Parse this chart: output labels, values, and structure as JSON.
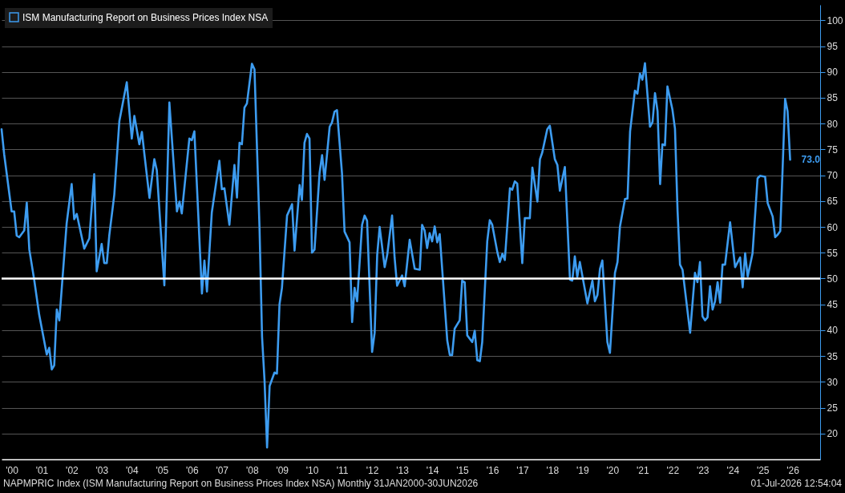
{
  "chart_data": {
    "type": "line",
    "series": [
      {
        "name": "ISM Manufacturing Report on Business Prices Index NSA",
        "color": "#3d9cf0",
        "x": [
          "2000-03",
          "2000-04",
          "2000-07",
          "2000-08",
          "2000-09",
          "2000-10",
          "2000-12",
          "2001-01",
          "2001-02",
          "2001-04",
          "2001-06",
          "2001-09",
          "2001-10",
          "2001-11",
          "2001-12",
          "2002-01",
          "2002-02",
          "2002-05",
          "2002-07",
          "2002-08",
          "2002-09",
          "2002-12",
          "2003-02",
          "2003-04",
          "2003-05",
          "2003-07",
          "2003-08",
          "2003-09",
          "2003-10",
          "2003-12",
          "2004-02",
          "2004-05",
          "2004-07",
          "2004-08",
          "2004-10",
          "2004-11",
          "2004-12",
          "2005-02",
          "2005-04",
          "2005-05",
          "2005-08",
          "2005-10",
          "2006-01",
          "2006-02",
          "2006-03",
          "2006-06",
          "2006-07",
          "2006-08",
          "2006-11",
          "2006-12",
          "2007-01",
          "2007-03",
          "2007-06",
          "2007-07",
          "2007-08",
          "2007-10",
          "2007-12",
          "2008-01",
          "2008-02",
          "2008-03",
          "2008-04",
          "2008-05",
          "2008-07",
          "2008-08",
          "2008-10",
          "2008-11",
          "2008-12",
          "2009-01",
          "2009-02",
          "2009-04",
          "2009-05",
          "2009-06",
          "2009-07",
          "2009-09",
          "2009-11",
          "2009-12",
          "2010-02",
          "2010-03",
          "2010-04",
          "2010-05",
          "2010-06",
          "2010-07",
          "2010-08",
          "2010-10",
          "2010-11",
          "2010-12",
          "2011-02",
          "2011-03",
          "2011-04",
          "2011-05",
          "2011-07",
          "2011-08",
          "2011-10",
          "2011-11",
          "2011-12",
          "2012-01",
          "2012-03",
          "2012-04",
          "2012-05",
          "2012-07",
          "2012-08",
          "2012-09",
          "2012-10",
          "2012-12",
          "2013-01",
          "2013-03",
          "2013-04",
          "2013-05",
          "2013-07",
          "2013-08",
          "2013-10",
          "2013-12",
          "2014-02",
          "2014-03",
          "2014-04",
          "2014-05",
          "2014-06",
          "2014-07",
          "2014-08",
          "2014-09",
          "2014-10",
          "2015-01",
          "2015-02",
          "2015-03",
          "2015-04",
          "2015-06",
          "2015-07",
          "2015-08",
          "2015-09",
          "2015-11",
          "2015-12",
          "2016-01",
          "2016-02",
          "2016-03",
          "2016-05",
          "2016-06",
          "2016-07",
          "2016-09",
          "2016-10",
          "2016-11",
          "2016-12",
          "2017-02",
          "2017-03",
          "2017-04",
          "2017-05",
          "2017-07",
          "2017-08",
          "2017-10",
          "2017-11",
          "2018-01",
          "2018-02",
          "2018-03",
          "2018-05",
          "2018-06",
          "2018-08",
          "2018-09",
          "2018-10",
          "2018-12",
          "2019-02",
          "2019-03",
          "2019-04",
          "2019-05",
          "2019-06",
          "2019-09",
          "2019-11",
          "2019-12",
          "2020-01",
          "2020-02",
          "2020-03",
          "2020-05",
          "2020-06",
          "2020-08",
          "2020-09",
          "2020-10",
          "2020-12",
          "2021-01",
          "2021-02",
          "2021-04",
          "2021-05",
          "2021-06",
          "2021-07",
          "2021-08",
          "2021-10",
          "2021-11",
          "2021-12",
          "2022-01",
          "2022-02",
          "2022-03",
          "2022-04",
          "2022-05",
          "2022-07",
          "2022-08",
          "2022-09",
          "2022-10",
          "2022-11",
          "2023-02",
          "2023-04",
          "2023-05",
          "2023-06",
          "2023-07",
          "2023-08",
          "2023-09",
          "2023-10",
          "2023-11",
          "2023-12",
          "2024-01",
          "2024-02",
          "2024-03",
          "2024-04",
          "2024-06",
          "2024-08",
          "2024-10",
          "2024-11",
          "2024-12",
          "2025-01",
          "2025-03",
          "2025-05",
          "2025-06",
          "2025-08",
          "2025-09",
          "2025-11",
          "2025-12",
          "2026-01",
          "2026-02",
          "2026-03",
          "2026-04",
          "2026-05",
          "2026-06"
        ],
        "values": [
          78.9,
          74.1,
          63.0,
          63.0,
          58.3,
          58.0,
          59.3,
          64.7,
          55.6,
          49.8,
          43.0,
          35.3,
          36.6,
          32.4,
          33.2,
          44.0,
          41.9,
          60.7,
          68.3,
          61.5,
          62.5,
          55.8,
          57.8,
          70.2,
          51.4,
          56.7,
          53.0,
          53.0,
          58.3,
          66.2,
          80.5,
          88.0,
          77.1,
          81.5,
          76.0,
          78.4,
          74.1,
          65.6,
          73.1,
          71.0,
          48.7,
          84.1,
          63.0,
          64.9,
          62.6,
          77.1,
          76.8,
          78.5,
          47.1,
          53.5,
          47.5,
          62.8,
          72.8,
          67.3,
          67.5,
          60.4,
          72.0,
          65.7,
          76.3,
          76.0,
          83.1,
          83.9,
          91.6,
          90.5,
          59.9,
          38.7,
          30.3,
          17.3,
          29.2,
          31.8,
          31.6,
          45.0,
          48.2,
          62.2,
          64.4,
          55.4,
          68.1,
          65.2,
          76.3,
          78.0,
          77.1,
          55.0,
          55.6,
          70.4,
          73.9,
          69.1,
          79.4,
          80.2,
          82.3,
          82.6,
          70.4,
          59.1,
          57.0,
          41.6,
          48.2,
          45.6,
          60.4,
          62.2,
          61.2,
          35.8,
          39.5,
          54.6,
          60.0,
          52.2,
          54.6,
          62.2,
          54.0,
          48.6,
          50.6,
          48.5,
          57.5,
          51.9,
          51.7,
          60.4,
          59.3,
          55.9,
          58.8,
          57.2,
          60.1,
          57.0,
          58.6,
          38.0,
          35.2,
          35.2,
          40.3,
          41.9,
          49.6,
          49.3,
          39.0,
          37.7,
          39.9,
          34.2,
          34.0,
          37.7,
          57.2,
          61.3,
          60.4,
          55.1,
          53.2,
          54.8,
          53.6,
          67.5,
          67.2,
          68.8,
          68.4,
          53.0,
          61.7,
          61.7,
          71.5,
          64.9,
          73.1,
          74.4,
          78.9,
          79.6,
          73.1,
          72.0,
          67.0,
          71.6,
          49.8,
          49.6,
          54.3,
          50.3,
          53.2,
          45.2,
          49.6,
          45.6,
          46.8,
          51.9,
          53.5,
          37.7,
          35.6,
          51.1,
          53.2,
          60.1,
          65.4,
          65.5,
          78.5,
          86.4,
          85.8,
          89.7,
          88.5,
          91.7,
          79.4,
          80.3,
          85.9,
          82.4,
          68.3,
          76.0,
          75.8,
          87.2,
          82.7,
          79.0,
          63.2,
          52.7,
          51.7,
          39.5,
          51.1,
          49.3,
          53.2,
          42.7,
          41.9,
          42.5,
          48.5,
          44.0,
          45.6,
          49.3,
          45.3,
          52.7,
          52.7,
          60.9,
          52.2,
          54.1,
          48.3,
          54.9,
          50.4,
          54.9,
          69.4,
          69.9,
          69.7,
          64.6,
          62.0,
          58.0,
          58.5,
          59.2,
          71.0,
          84.8,
          82.4,
          73.0
        ]
      }
    ],
    "xlim": [
      "2000-03",
      "2027-06"
    ],
    "xticks": [
      {
        "value": "2000-07",
        "label": "'00"
      },
      {
        "value": "2001-07",
        "label": "'01"
      },
      {
        "value": "2002-07",
        "label": "'02"
      },
      {
        "value": "2003-07",
        "label": "'03"
      },
      {
        "value": "2004-07",
        "label": "'04"
      },
      {
        "value": "2005-07",
        "label": "'05"
      },
      {
        "value": "2006-07",
        "label": "'06"
      },
      {
        "value": "2007-07",
        "label": "'07"
      },
      {
        "value": "2008-07",
        "label": "'08"
      },
      {
        "value": "2009-07",
        "label": "'09"
      },
      {
        "value": "2010-07",
        "label": "'10"
      },
      {
        "value": "2011-07",
        "label": "'11"
      },
      {
        "value": "2012-07",
        "label": "'12"
      },
      {
        "value": "2013-07",
        "label": "'13"
      },
      {
        "value": "2014-07",
        "label": "'14"
      },
      {
        "value": "2015-07",
        "label": "'15"
      },
      {
        "value": "2016-07",
        "label": "'16"
      },
      {
        "value": "2017-07",
        "label": "'17"
      },
      {
        "value": "2018-07",
        "label": "'18"
      },
      {
        "value": "2019-07",
        "label": "'19"
      },
      {
        "value": "2020-07",
        "label": "'20"
      },
      {
        "value": "2021-07",
        "label": "'21"
      },
      {
        "value": "2022-07",
        "label": "'22"
      },
      {
        "value": "2023-07",
        "label": "'23"
      },
      {
        "value": "2024-07",
        "label": "'24"
      },
      {
        "value": "2025-07",
        "label": "'25"
      },
      {
        "value": "2026-07",
        "label": "'26"
      }
    ],
    "ylim": [
      15,
      103
    ],
    "yticks": [
      20,
      25,
      30,
      35,
      40,
      45,
      50,
      55,
      60,
      65,
      70,
      75,
      80,
      85,
      90,
      95,
      100
    ],
    "grid": "y",
    "legend": "top left",
    "ref_lines": [
      {
        "axis": "y",
        "value": 50,
        "color": "#ffffff"
      }
    ],
    "annotations": [
      {
        "text": "73.0",
        "x": "2026-06",
        "y": 73.0
      },
      "NAPMPRIC Index (ISM Manufacturing Report on Business Prices Index NSA) Monthly 31JAN2000-30JUN2026",
      "01-Jul-2026 12:54:04"
    ]
  }
}
